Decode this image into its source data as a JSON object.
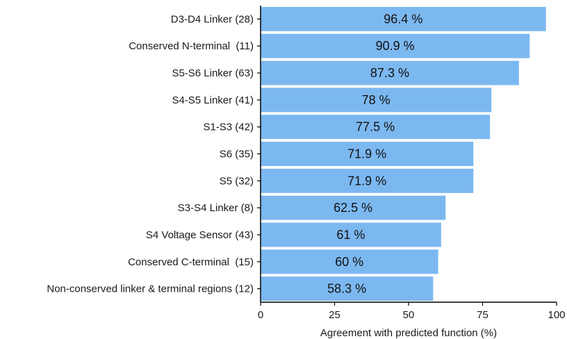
{
  "chart_data": {
    "type": "bar",
    "orientation": "horizontal",
    "categories": [
      "D3-D4 Linker (28)",
      "Conserved N-terminal  (11)",
      "S5-S6 Linker (63)",
      "S4-S5 Linker (41)",
      "S1-S3 (42)",
      "S6 (35)",
      "S5 (32)",
      "S3-S4 Linker (8)",
      "S4 Voltage Sensor (43)",
      "Conserved C-terminal  (15)",
      "Non-conserved linker & terminal regions (12)"
    ],
    "values": [
      96.4,
      90.9,
      87.3,
      78,
      77.5,
      71.9,
      71.9,
      62.5,
      61,
      60,
      58.3
    ],
    "data_labels": [
      "96.4 %",
      "90.9 %",
      "87.3 %",
      "78 %",
      "77.5 %",
      "71.9 %",
      "71.9 %",
      "62.5 %",
      "61 %",
      "60 %",
      "58.3 %"
    ],
    "xlabel": "Agreement with predicted function (%)",
    "ylabel": "",
    "xlim": [
      0,
      100
    ],
    "xticks": [
      0,
      25,
      50,
      75,
      100
    ],
    "xtick_labels": [
      "0",
      "25",
      "50",
      "75",
      "100"
    ],
    "grid": false,
    "bar_color": "#7cb8f0",
    "axis_color": "#000000"
  }
}
